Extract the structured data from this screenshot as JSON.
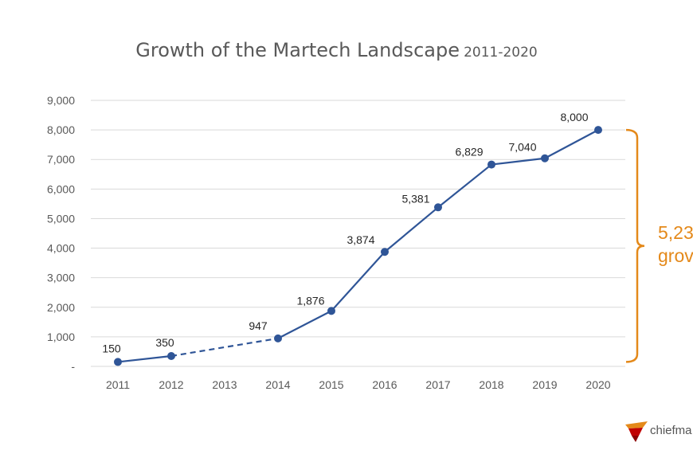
{
  "title": {
    "main": "Growth of the Martech Landscape",
    "sub": "2011-2020"
  },
  "chart_data": {
    "type": "line",
    "title": "Growth of the Martech Landscape 2011-2020",
    "xlabel": "",
    "ylabel": "",
    "categories": [
      "2011",
      "2012",
      "2013",
      "2014",
      "2015",
      "2016",
      "2017",
      "2018",
      "2019",
      "2020"
    ],
    "series": [
      {
        "values": [
          150,
          350,
          null,
          947,
          1876,
          3874,
          5381,
          6829,
          7040,
          8000
        ],
        "data_labels": [
          "150",
          "350",
          "",
          "947",
          "1,876",
          "3,874",
          "5,381",
          "6,829",
          "7,040",
          "8,000"
        ],
        "color": "#2F5597",
        "dashed_segment": [
          "2012",
          "2014"
        ]
      }
    ],
    "ylim": [
      0,
      9000
    ],
    "yticks": [
      0,
      1000,
      2000,
      3000,
      4000,
      5000,
      6000,
      7000,
      8000,
      9000
    ],
    "ytick_labels": [
      "-",
      "1,000",
      "2,000",
      "3,000",
      "4,000",
      "5,000",
      "6,000",
      "7,000",
      "8,000",
      "9,000"
    ],
    "grid": true,
    "legend": "none",
    "annotation": {
      "bracket_range": [
        150,
        8000
      ],
      "text_lines": [
        "5,23",
        "grov"
      ],
      "color": "#E4891A"
    }
  },
  "logo": {
    "text": "chiefma"
  }
}
